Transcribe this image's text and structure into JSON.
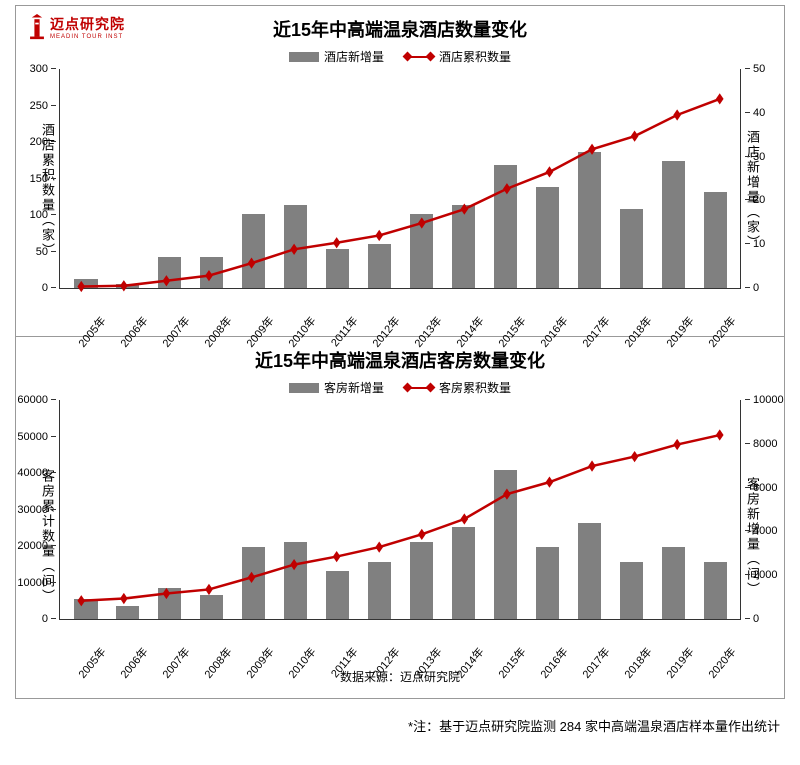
{
  "logo": {
    "text": "迈点研究院",
    "sub": "MEADIN TOUR INST",
    "icon_color": "#c00000"
  },
  "footnote": "*注：基于迈点研究院监测 284 家中高端温泉酒店样本量作出统计",
  "source": "数据来源：迈点研究院",
  "colors": {
    "bar": "#808080",
    "line": "#c00000",
    "axis": "#333333",
    "bg": "#ffffff"
  },
  "chart1": {
    "title": "近15年中高端温泉酒店数量变化",
    "legend_bar": "酒店新增量",
    "legend_line": "酒店累积数量",
    "y_left_label": "酒店累积数量（家）",
    "y_right_label": "酒店新增量（家）",
    "categories": [
      "2005年",
      "2006年",
      "2007年",
      "2008年",
      "2009年",
      "2010年",
      "2011年",
      "2012年",
      "2013年",
      "2014年",
      "2015年",
      "2016年",
      "2017年",
      "2018年",
      "2019年",
      "2020年"
    ],
    "bars_right_values": [
      2,
      1,
      7,
      7,
      17,
      19,
      9,
      10,
      17,
      19,
      28,
      23,
      31,
      18,
      29,
      22
    ],
    "line_left_values": [
      2,
      3,
      10,
      17,
      34,
      53,
      62,
      72,
      89,
      108,
      136,
      159,
      190,
      208,
      237,
      259
    ],
    "y_left": {
      "min": 0,
      "max": 300,
      "ticks": [
        0,
        50,
        100,
        150,
        200,
        250,
        300
      ]
    },
    "y_right": {
      "min": 0,
      "max": 50,
      "ticks": [
        0,
        10,
        20,
        30,
        40,
        50
      ]
    }
  },
  "chart2": {
    "title": "近15年中高端温泉酒店客房数量变化",
    "legend_bar": "客房新增量",
    "legend_line": "客房累积数量",
    "y_left_label": "客房累计数量（间）",
    "y_right_label": "客房新增量（间）",
    "categories": [
      "2005年",
      "2006年",
      "2007年",
      "2008年",
      "2009年",
      "2010年",
      "2011年",
      "2012年",
      "2013年",
      "2014年",
      "2015年",
      "2016年",
      "2017年",
      "2018年",
      "2019年",
      "2020年"
    ],
    "bars_right_values": [
      900,
      600,
      1400,
      1100,
      3300,
      3500,
      2200,
      2600,
      3500,
      4200,
      6800,
      3300,
      4400,
      2600,
      3300,
      2600
    ],
    "line_left_values": [
      5000,
      5600,
      7000,
      8100,
      11400,
      14900,
      17100,
      19700,
      23200,
      27400,
      34200,
      37500,
      41900,
      44500,
      47800,
      50400
    ],
    "y_left": {
      "min": 0,
      "max": 60000,
      "ticks": [
        0,
        10000,
        20000,
        30000,
        40000,
        50000,
        60000
      ]
    },
    "y_right": {
      "min": 0,
      "max": 10000,
      "ticks": [
        0,
        2000,
        4000,
        6000,
        8000,
        10000
      ]
    }
  }
}
